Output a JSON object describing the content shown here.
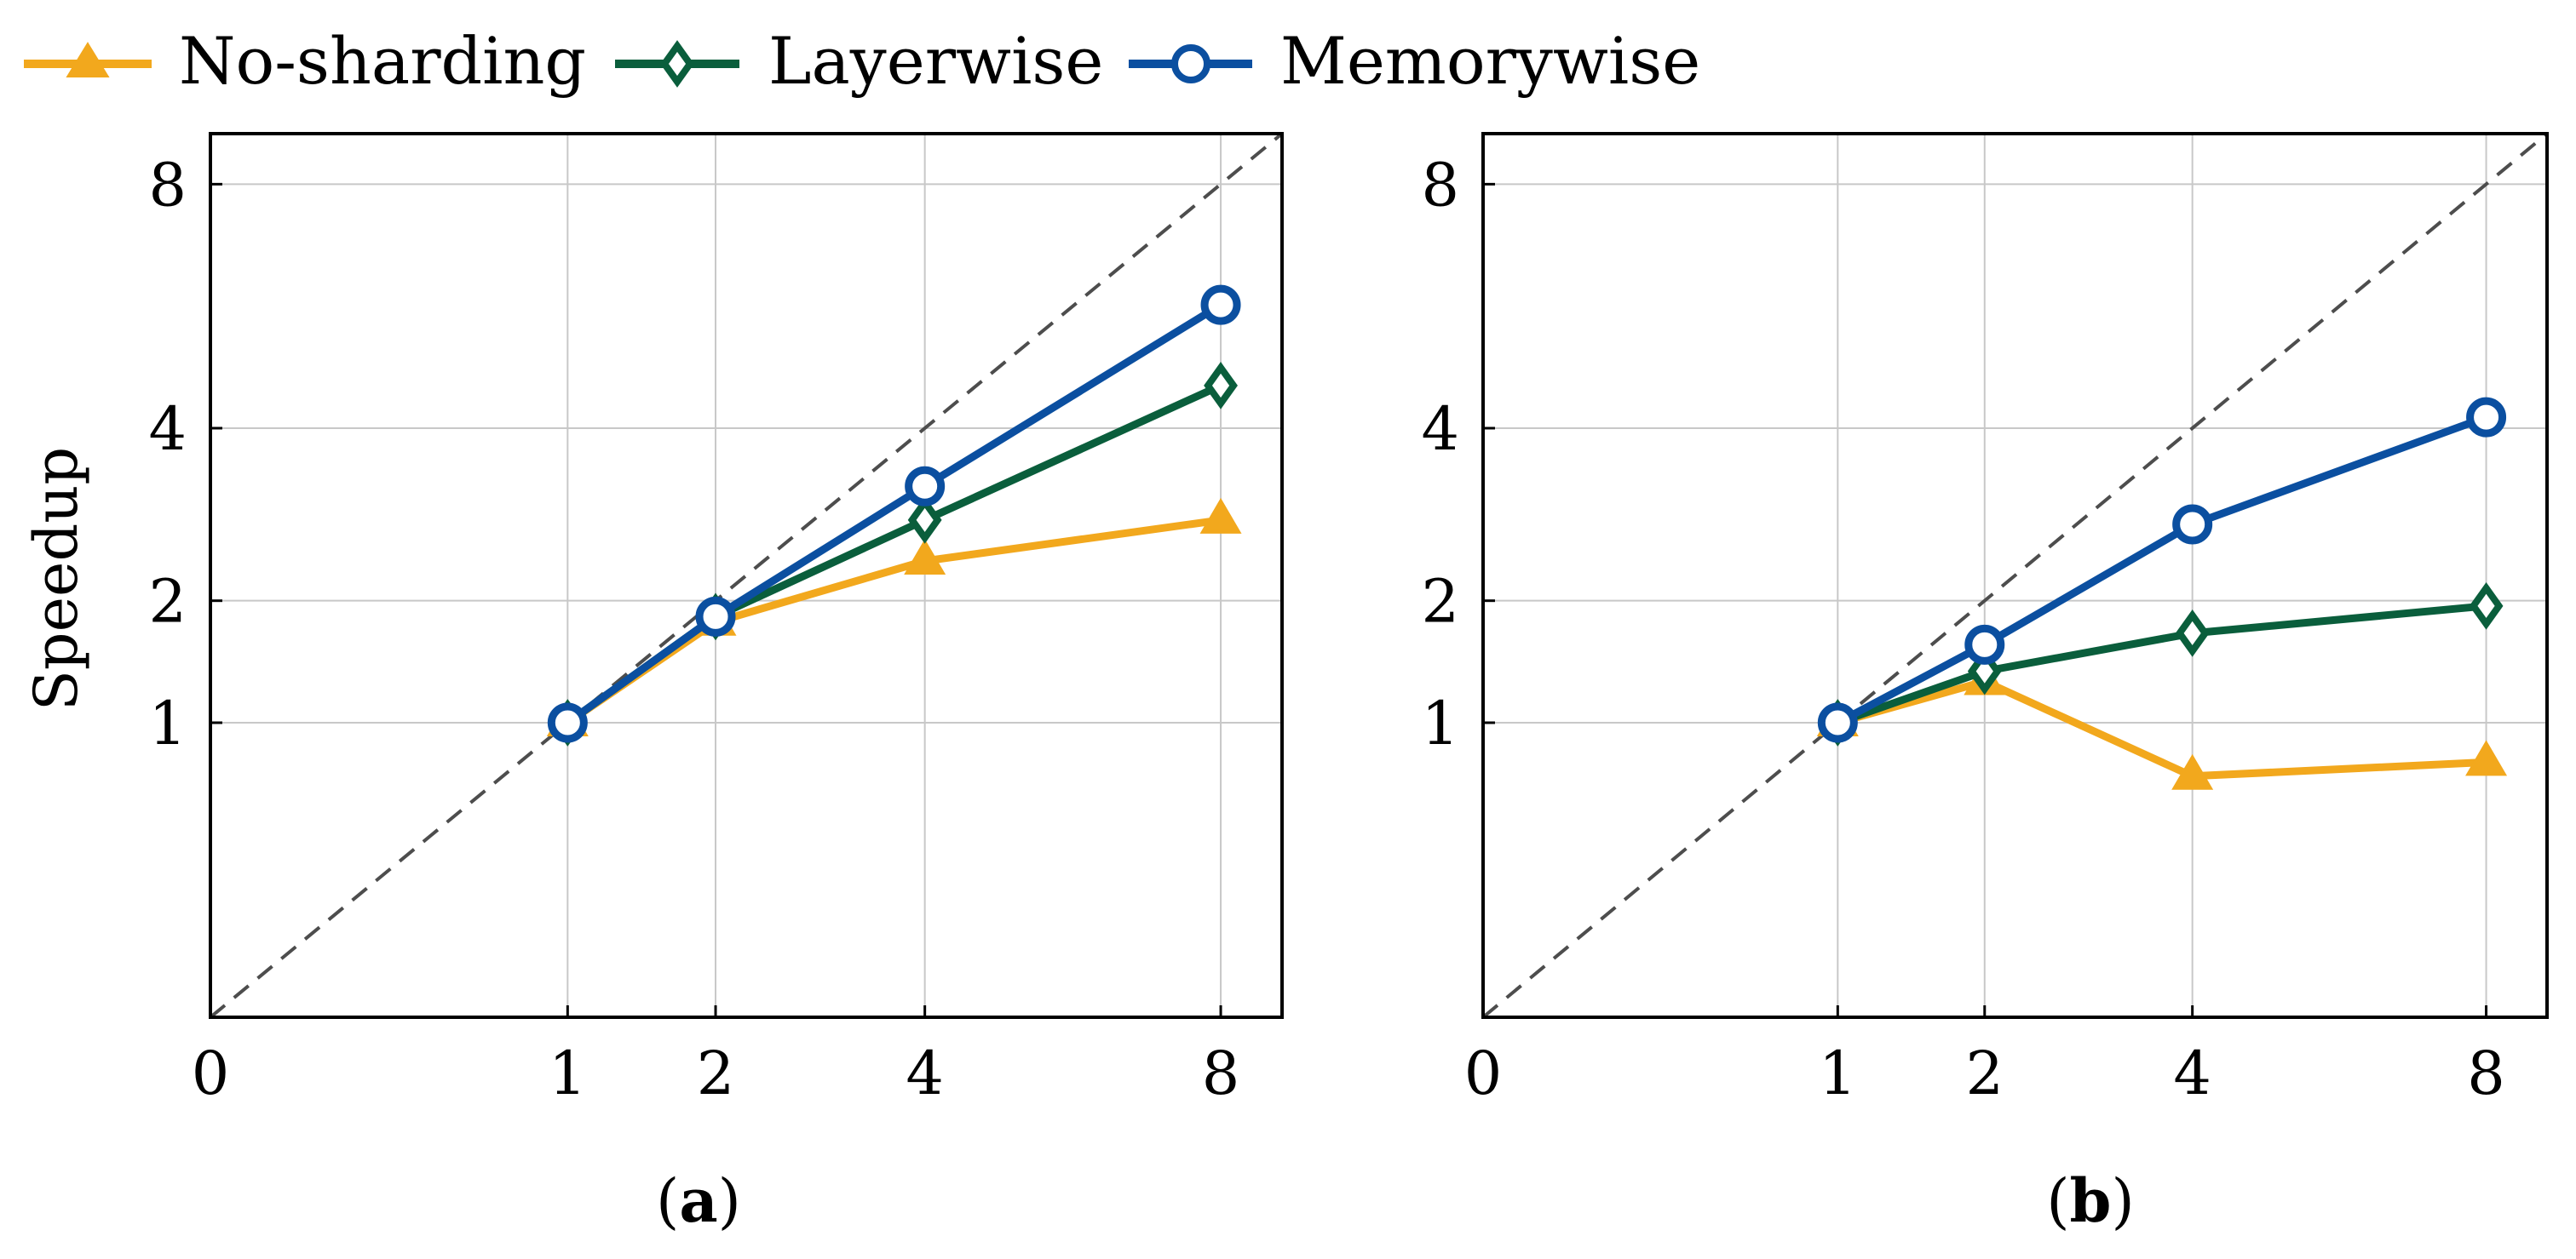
{
  "legend": [
    {
      "name": "No-sharding",
      "color": "#f2a81d",
      "marker": "triangle"
    },
    {
      "name": "Layerwise",
      "color": "#0a5e3c",
      "marker": "diamond"
    },
    {
      "name": "Memorywise",
      "color": "#0b4fa0",
      "marker": "circle"
    }
  ],
  "ylabel": "Speedup",
  "reference_line": "ideal linear speedup (y = x)",
  "chart_data": [
    {
      "type": "line",
      "caption": "(a)",
      "caption_open": "(",
      "caption_letter": "a",
      "caption_close": ")",
      "xlim": [
        0,
        9
      ],
      "ylim": [
        0,
        9
      ],
      "xticks": [
        0,
        1,
        2,
        4,
        8
      ],
      "yticks": [
        1,
        2,
        4,
        8
      ],
      "x": [
        1,
        2,
        4,
        8
      ],
      "series": [
        {
          "name": "No-sharding",
          "values": [
            1.0,
            1.8,
            2.4,
            2.85
          ]
        },
        {
          "name": "Layerwise",
          "values": [
            1.0,
            1.85,
            2.85,
            4.6
          ]
        },
        {
          "name": "Memorywise",
          "values": [
            1.0,
            1.85,
            3.25,
            5.85
          ]
        }
      ]
    },
    {
      "type": "line",
      "caption": "(b)",
      "caption_open": "(",
      "caption_letter": "b",
      "caption_close": ")",
      "xlim": [
        0,
        9
      ],
      "ylim": [
        0,
        9
      ],
      "xticks": [
        0,
        1,
        2,
        4,
        8
      ],
      "yticks": [
        1,
        2,
        4,
        8
      ],
      "x": [
        1,
        2,
        4,
        8
      ],
      "series": [
        {
          "name": "No-sharding",
          "values": [
            1.0,
            1.3,
            0.67,
            0.75
          ]
        },
        {
          "name": "Layerwise",
          "values": [
            1.0,
            1.38,
            1.7,
            1.95
          ]
        },
        {
          "name": "Memorywise",
          "values": [
            1.0,
            1.6,
            2.8,
            4.15
          ]
        }
      ]
    }
  ]
}
